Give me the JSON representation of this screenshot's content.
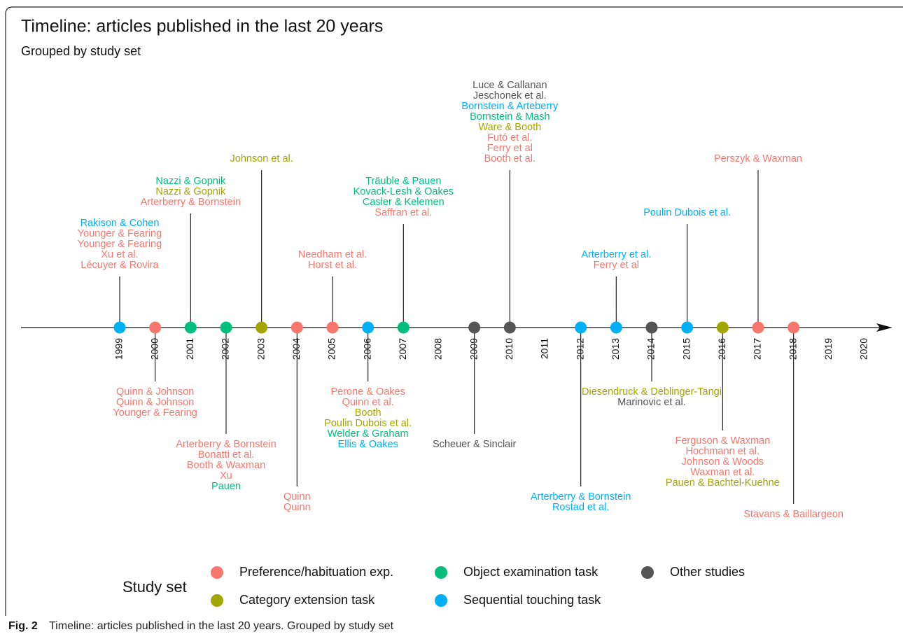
{
  "chart_data": {
    "type": "timeline",
    "title": "Timeline: articles published in the last 20 years",
    "subtitle": "Grouped by study set",
    "legend_title": "Study set",
    "sets": [
      {
        "name": "Preference/habituation exp.",
        "color": "#f8766d"
      },
      {
        "name": "Category extension task",
        "color": "#a3a500"
      },
      {
        "name": "Object examination task",
        "color": "#00bf7d"
      },
      {
        "name": "Sequential touching task",
        "color": "#00b0f6"
      },
      {
        "name": "Other studies",
        "color": "#555555"
      }
    ],
    "years": [
      1999,
      2000,
      2001,
      2002,
      2003,
      2004,
      2005,
      2006,
      2007,
      2008,
      2009,
      2010,
      2011,
      2012,
      2013,
      2014,
      2015,
      2016,
      2017,
      2018,
      2019,
      2020
    ],
    "events": [
      {
        "year": 1999,
        "set": "Sequential touching task",
        "side": "up",
        "articles": [
          {
            "text": "Rakison & Cohen",
            "set": "Sequential touching task"
          },
          {
            "text": "Younger & Fearing",
            "set": "Preference/habituation exp."
          },
          {
            "text": "Younger & Fearing",
            "set": "Preference/habituation exp."
          },
          {
            "text": "Xu et al.",
            "set": "Preference/habituation exp."
          },
          {
            "text": "Lécuyer & Rovira",
            "set": "Preference/habituation exp."
          }
        ]
      },
      {
        "year": 2000,
        "set": "Preference/habituation exp.",
        "side": "down",
        "articles": [
          {
            "text": "Quinn & Johnson",
            "set": "Preference/habituation exp."
          },
          {
            "text": "Quinn & Johnson",
            "set": "Preference/habituation exp."
          },
          {
            "text": "Younger & Fearing",
            "set": "Preference/habituation exp."
          }
        ]
      },
      {
        "year": 2001,
        "set": "Object examination task",
        "side": "up",
        "articles": [
          {
            "text": "Nazzi & Gopnik",
            "set": "Object examination task"
          },
          {
            "text": "Nazzi & Gopnik",
            "set": "Category extension task"
          },
          {
            "text": "Arterberry & Bornstein",
            "set": "Preference/habituation exp."
          }
        ]
      },
      {
        "year": 2002,
        "set": "Object examination task",
        "side": "down",
        "articles": [
          {
            "text": "Arterberry & Bornstein",
            "set": "Preference/habituation exp."
          },
          {
            "text": "Bonatti et al.",
            "set": "Preference/habituation exp."
          },
          {
            "text": "Booth & Waxman",
            "set": "Preference/habituation exp."
          },
          {
            "text": "Xu",
            "set": "Preference/habituation exp."
          },
          {
            "text": "Pauen",
            "set": "Object examination task"
          }
        ]
      },
      {
        "year": 2003,
        "set": "Category extension task",
        "side": "up",
        "articles": [
          {
            "text": "Johnson et al.",
            "set": "Category extension task"
          }
        ]
      },
      {
        "year": 2004,
        "set": "Preference/habituation exp.",
        "side": "down",
        "articles": [
          {
            "text": "Quinn",
            "set": "Preference/habituation exp."
          },
          {
            "text": "Quinn",
            "set": "Preference/habituation exp."
          }
        ]
      },
      {
        "year": 2005,
        "set": "Preference/habituation exp.",
        "side": "up",
        "articles": [
          {
            "text": "Needham et al.",
            "set": "Preference/habituation exp."
          },
          {
            "text": "Horst et al.",
            "set": "Preference/habituation exp."
          }
        ]
      },
      {
        "year": 2006,
        "set": "Sequential touching task",
        "side": "down",
        "articles": [
          {
            "text": "Perone & Oakes",
            "set": "Preference/habituation exp."
          },
          {
            "text": "Quinn et al.",
            "set": "Preference/habituation exp."
          },
          {
            "text": "Booth",
            "set": "Category extension task"
          },
          {
            "text": "Poulin Dubois et al.",
            "set": "Category extension task"
          },
          {
            "text": "Welder & Graham",
            "set": "Object examination task"
          },
          {
            "text": "Ellis & Oakes",
            "set": "Sequential touching task"
          }
        ]
      },
      {
        "year": 2007,
        "set": "Object examination task",
        "side": "up",
        "articles": [
          {
            "text": "Träuble & Pauen",
            "set": "Object examination task"
          },
          {
            "text": "Kovack-Lesh & Oakes",
            "set": "Object examination task"
          },
          {
            "text": "Casler & Kelemen",
            "set": "Object examination task"
          },
          {
            "text": "Saffran et al.",
            "set": "Preference/habituation exp."
          }
        ]
      },
      {
        "year": 2009,
        "set": "Other studies",
        "side": "down",
        "articles": [
          {
            "text": "Scheuer & Sinclair",
            "set": "Other studies"
          }
        ]
      },
      {
        "year": 2010,
        "set": "Other studies",
        "side": "up",
        "articles": [
          {
            "text": "Luce & Callanan",
            "set": "Other studies"
          },
          {
            "text": "Jeschonek et al.",
            "set": "Other studies"
          },
          {
            "text": "Bornstein & Arteberry",
            "set": "Sequential touching task"
          },
          {
            "text": "Bornstein & Mash",
            "set": "Object examination task"
          },
          {
            "text": "Ware & Booth",
            "set": "Category extension task"
          },
          {
            "text": "Futó et al.",
            "set": "Preference/habituation exp."
          },
          {
            "text": "Ferry et al",
            "set": "Preference/habituation exp."
          },
          {
            "text": "Booth et al.",
            "set": "Preference/habituation exp."
          }
        ]
      },
      {
        "year": 2012,
        "set": "Sequential touching task",
        "side": "down",
        "articles": [
          {
            "text": "Arterberry & Bornstein",
            "set": "Sequential touching task"
          },
          {
            "text": "Rostad et al.",
            "set": "Sequential touching task"
          }
        ]
      },
      {
        "year": 2013,
        "set": "Sequential touching task",
        "side": "up",
        "articles": [
          {
            "text": "Arterberry et al.",
            "set": "Sequential touching task"
          },
          {
            "text": "Ferry et al",
            "set": "Preference/habituation exp."
          }
        ]
      },
      {
        "year": 2014,
        "set": "Other studies",
        "side": "down",
        "articles": [
          {
            "text": "Diesendruck & Deblinger-Tangi",
            "set": "Category extension task"
          },
          {
            "text": "Marinovic et al.",
            "set": "Other studies"
          }
        ]
      },
      {
        "year": 2015,
        "set": "Sequential touching task",
        "side": "up",
        "articles": [
          {
            "text": "Poulin Dubois et al.",
            "set": "Sequential touching task"
          }
        ]
      },
      {
        "year": 2016,
        "set": "Category extension task",
        "side": "down",
        "articles": [
          {
            "text": "Ferguson & Waxman",
            "set": "Preference/habituation exp."
          },
          {
            "text": "Hochmann et al.",
            "set": "Preference/habituation exp."
          },
          {
            "text": "Johnson & Woods",
            "set": "Preference/habituation exp."
          },
          {
            "text": "Waxman et al.",
            "set": "Preference/habituation exp."
          },
          {
            "text": "Pauen & Bachtel-Kuehne",
            "set": "Category extension task"
          }
        ]
      },
      {
        "year": 2017,
        "set": "Preference/habituation exp.",
        "side": "up",
        "articles": [
          {
            "text": "Perszyk & Waxman",
            "set": "Preference/habituation exp."
          }
        ]
      },
      {
        "year": 2018,
        "set": "Preference/habituation exp.",
        "side": "down",
        "articles": [
          {
            "text": "Stavans & Baillargeon",
            "set": "Preference/habituation exp."
          }
        ]
      }
    ],
    "caption": {
      "label": "Fig. 2",
      "text": "Timeline: articles published in the last 20 years. Grouped by study set"
    }
  }
}
